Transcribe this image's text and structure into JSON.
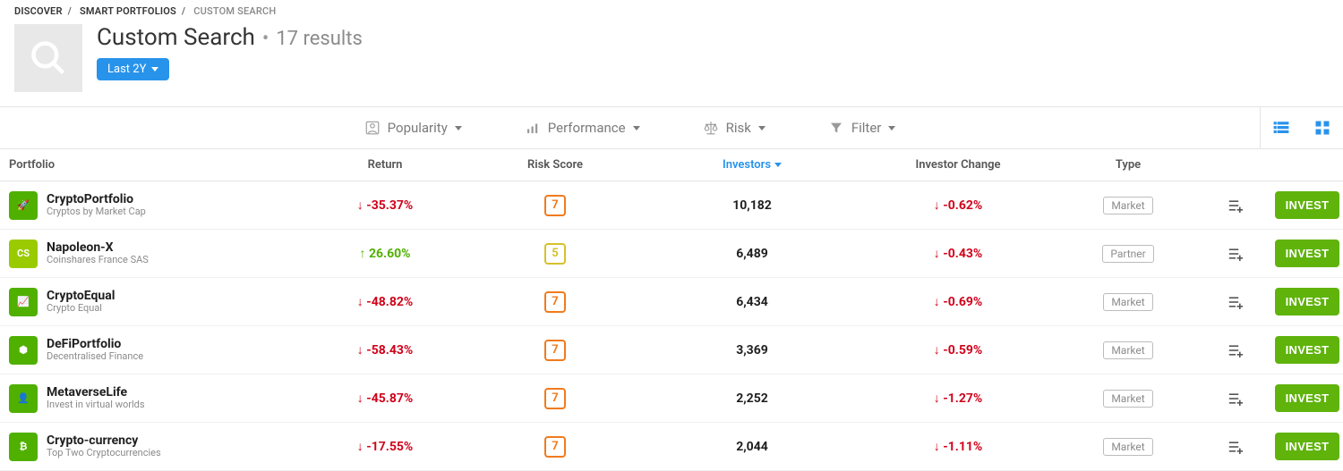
{
  "breadcrumb": {
    "l1": "DISCOVER",
    "l2": "SMART PORTFOLIOS",
    "l3": "CUSTOM SEARCH"
  },
  "header": {
    "title": "Custom Search",
    "results": "17 results",
    "pill": "Last 2Y"
  },
  "filters": {
    "popularity": "Popularity",
    "performance": "Performance",
    "risk": "Risk",
    "filter": "Filter"
  },
  "columns": {
    "portfolio": "Portfolio",
    "return": "Return",
    "risk": "Risk Score",
    "investors": "Investors",
    "change": "Investor Change",
    "type": "Type"
  },
  "action_label": "INVEST",
  "rows": [
    {
      "name": "CryptoPortfolio",
      "sub": "Cryptos by Market Cap",
      "icon_bg": "#4fb000",
      "icon_txt": "🚀",
      "return": "-35.37%",
      "ret_dir": "neg",
      "risk": "7",
      "investors": "10,182",
      "change": "-0.62%",
      "type": "Market"
    },
    {
      "name": "Napoleon-X",
      "sub": "Coinshares France SAS",
      "icon_bg": "#9acb00",
      "icon_txt": "CS",
      "return": "26.60%",
      "ret_dir": "pos",
      "risk": "5",
      "investors": "6,489",
      "change": "-0.43%",
      "type": "Partner"
    },
    {
      "name": "CryptoEqual",
      "sub": "Crypto Equal",
      "icon_bg": "#4fb000",
      "icon_txt": "📈",
      "return": "-48.82%",
      "ret_dir": "neg",
      "risk": "7",
      "investors": "6,434",
      "change": "-0.69%",
      "type": "Market"
    },
    {
      "name": "DeFiPortfolio",
      "sub": "Decentralised Finance",
      "icon_bg": "#4fb000",
      "icon_txt": "⬢",
      "return": "-58.43%",
      "ret_dir": "neg",
      "risk": "7",
      "investors": "3,369",
      "change": "-0.59%",
      "type": "Market"
    },
    {
      "name": "MetaverseLife",
      "sub": "Invest in virtual worlds",
      "icon_bg": "#4fb000",
      "icon_txt": "👤",
      "return": "-45.87%",
      "ret_dir": "neg",
      "risk": "7",
      "investors": "2,252",
      "change": "-1.27%",
      "type": "Market"
    },
    {
      "name": "Crypto-currency",
      "sub": "Top Two Cryptocurrencies",
      "icon_bg": "#4fb000",
      "icon_txt": "₿",
      "return": "-17.55%",
      "ret_dir": "neg",
      "risk": "7",
      "investors": "2,044",
      "change": "-1.11%",
      "type": "Market"
    }
  ]
}
